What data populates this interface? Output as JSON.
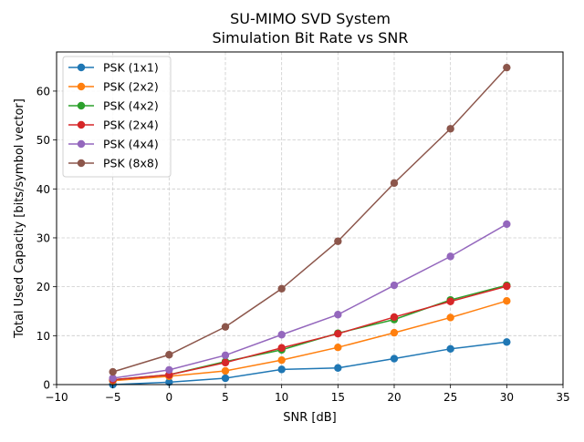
{
  "chart_data": {
    "type": "line",
    "title": "SU-MIMO SVD System",
    "subtitle": "Simulation Bit Rate vs SNR",
    "xlabel": "SNR [dB]",
    "ylabel": "Total Used Capacity [bits/symbol vector]",
    "xlim": [
      -10,
      35
    ],
    "ylim": [
      0,
      68
    ],
    "xticks": [
      -10,
      -5,
      0,
      5,
      10,
      15,
      20,
      25,
      30,
      35
    ],
    "yticks": [
      0,
      10,
      20,
      30,
      40,
      50,
      60
    ],
    "grid": true,
    "grid_style": "dashed",
    "legend_position": "top-left",
    "x": [
      -5,
      0,
      5,
      10,
      15,
      20,
      25,
      30
    ],
    "series": [
      {
        "name": "PSK (1x1)",
        "color": "#1f77b4",
        "values": [
          0.0,
          0.5,
          1.3,
          3.1,
          3.4,
          5.3,
          7.3,
          8.7
        ]
      },
      {
        "name": "PSK (2x2)",
        "color": "#ff7f0e",
        "values": [
          0.8,
          1.7,
          2.8,
          5.0,
          7.6,
          10.6,
          13.7,
          17.1
        ]
      },
      {
        "name": "PSK (4x2)",
        "color": "#2ca02c",
        "values": [
          1.0,
          2.0,
          4.7,
          7.1,
          10.5,
          13.3,
          17.3,
          20.3
        ]
      },
      {
        "name": "PSK (2x4)",
        "color": "#d62728",
        "values": [
          1.0,
          2.0,
          4.5,
          7.5,
          10.4,
          13.8,
          17.0,
          20.1
        ]
      },
      {
        "name": "PSK (4x4)",
        "color": "#9467bd",
        "values": [
          1.3,
          3.0,
          6.0,
          10.2,
          14.3,
          20.3,
          26.2,
          32.8
        ]
      },
      {
        "name": "PSK (8x8)",
        "color": "#8c564b",
        "values": [
          2.6,
          6.1,
          11.8,
          19.6,
          29.3,
          41.2,
          52.3,
          64.8
        ]
      }
    ]
  }
}
